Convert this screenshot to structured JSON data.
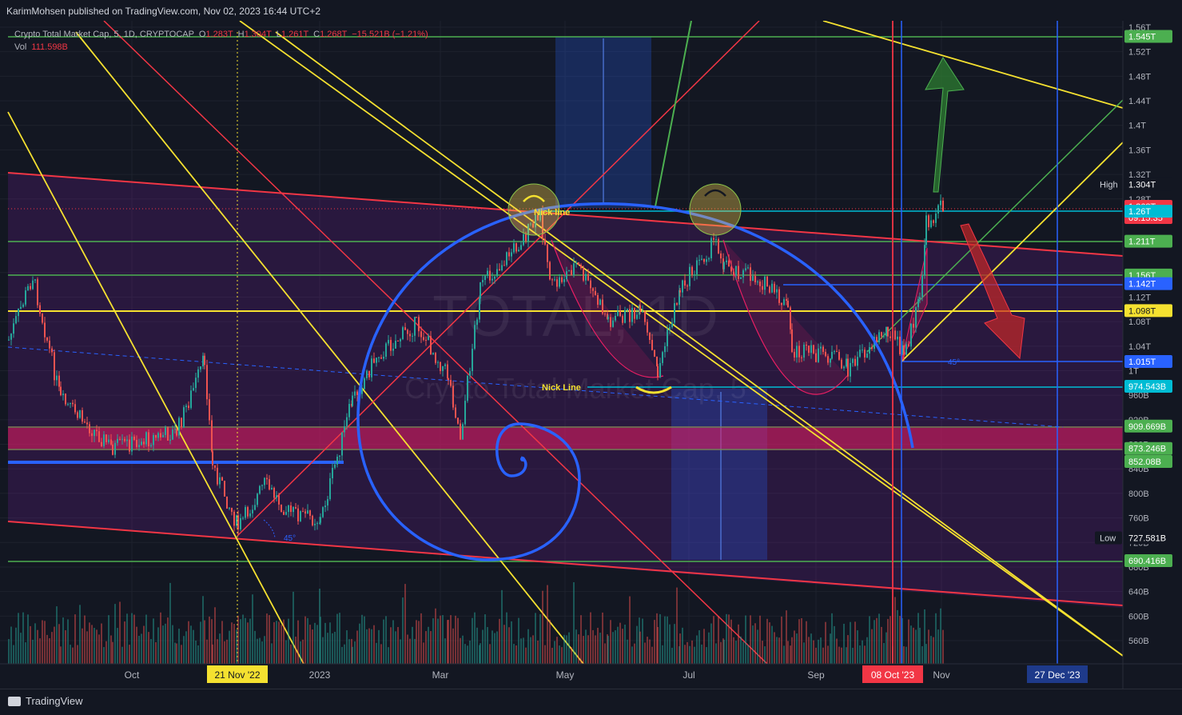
{
  "publisher_line": "KarimMohsen published on TradingView.com, Nov 02, 2023 16:44 UTC+2",
  "legend": {
    "symbol": "Crypto Total Market Cap, 5, 1D, CRYPTOCAP",
    "o_label": "O",
    "o_val": "1.283T",
    "h_label": "H",
    "h_val": "1.304T",
    "l_label": "L",
    "l_val": "1.261T",
    "c_label": "C",
    "c_val": "1.268T",
    "change": "−15.521B (−1.21%)",
    "vol_label": "Vol",
    "vol_val": "111.598B"
  },
  "watermark": {
    "ticker": "TOTAL, 1D",
    "name": "Crypto Total Market Cap, 5"
  },
  "annotations": {
    "nick_line_1": "Nick line",
    "nick_line_2": "Nick Line",
    "angle_1": "45°",
    "angle_2": "45°"
  },
  "chart_data": {
    "type": "candlestick",
    "title": "Crypto Total Market Cap, 5, 1D, CRYPTOCAP",
    "price_axis_ticks": [
      "1.56T",
      "1.52T",
      "1.48T",
      "1.44T",
      "1.4T",
      "1.36T",
      "1.32T",
      "1.28T",
      "1.16T",
      "1.12T",
      "1.08T",
      "1.04T",
      "1T",
      "960B",
      "920B",
      "880B",
      "840B",
      "800B",
      "760B",
      "720B",
      "680B",
      "640B",
      "600B",
      "560B"
    ],
    "time_axis_ticks": [
      "Oct",
      "2023",
      "Mar",
      "May",
      "Jul",
      "Sep",
      "Nov"
    ],
    "price_badges": [
      {
        "label": "1.545T",
        "color": "#4caf50"
      },
      {
        "label": "1.304T",
        "color": "#131722",
        "tag": "High"
      },
      {
        "label": "1.268T",
        "color": "#f23645",
        "sub": "09:15:35"
      },
      {
        "label": "1.26T",
        "color": "#00bcd4"
      },
      {
        "label": "1.211T",
        "color": "#4caf50"
      },
      {
        "label": "1.156T",
        "color": "#4caf50"
      },
      {
        "label": "1.142T",
        "color": "#2962ff"
      },
      {
        "label": "1.098T",
        "color": "#f5e130"
      },
      {
        "label": "1.015T",
        "color": "#2962ff"
      },
      {
        "label": "974.543B",
        "color": "#00bcd4"
      },
      {
        "label": "909.669B",
        "color": "#4caf50"
      },
      {
        "label": "873.246B",
        "color": "#4caf50"
      },
      {
        "label": "852.08B",
        "color": "#4caf50"
      },
      {
        "label": "727.581B",
        "color": "#131722",
        "tag": "Low"
      },
      {
        "label": "690.416B",
        "color": "#4caf50"
      }
    ],
    "date_badges": [
      {
        "label": "21 Nov '22",
        "color": "#f5e130"
      },
      {
        "label": "08 Oct '23",
        "color": "#f23645"
      },
      {
        "label": "27 Dec '23",
        "color": "#1e3a8a"
      }
    ],
    "ohlc_last": {
      "open": 1.283,
      "high": 1.304,
      "low": 1.261,
      "close": 1.268,
      "unit": "T"
    },
    "volume_last": "111.598B"
  },
  "footer": {
    "brand": "TradingView"
  }
}
